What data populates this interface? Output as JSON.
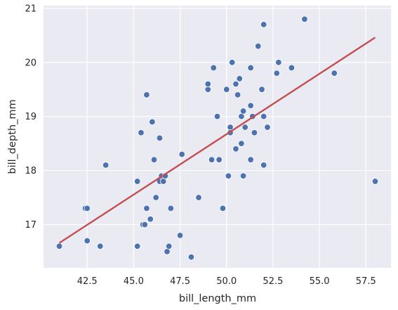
{
  "chart_data": {
    "type": "scatter",
    "title": "",
    "xlabel": "bill_length_mm",
    "ylabel": "bill_depth_mm",
    "xlim": [
      40.15,
      58.85
    ],
    "ylim": [
      16.2,
      21.05
    ],
    "x_ticks": [
      "42.5",
      "45.0",
      "47.5",
      "50.0",
      "52.5",
      "55.0",
      "57.5"
    ],
    "x_tick_values": [
      42.5,
      45.0,
      47.5,
      50.0,
      52.5,
      55.0,
      57.5
    ],
    "y_ticks": [
      "17",
      "18",
      "19",
      "20",
      "21"
    ],
    "y_tick_values": [
      17,
      18,
      19,
      20,
      21
    ],
    "grid": true,
    "colors": {
      "background": "#eaeaf2",
      "grid": "#ffffff",
      "points": "#4c72b0",
      "point_edge": "#ffffff",
      "regression_line": "#c44e52"
    },
    "series": [
      {
        "points": [
          [
            41.0,
            16.6
          ],
          [
            42.4,
            17.3
          ],
          [
            42.5,
            17.3
          ],
          [
            42.5,
            16.7
          ],
          [
            43.2,
            16.6
          ],
          [
            43.5,
            18.1
          ],
          [
            45.2,
            17.8
          ],
          [
            45.2,
            16.6
          ],
          [
            45.4,
            18.7
          ],
          [
            45.5,
            17.0
          ],
          [
            45.6,
            17.0
          ],
          [
            45.7,
            19.4
          ],
          [
            45.7,
            17.3
          ],
          [
            45.9,
            17.1
          ],
          [
            46.0,
            18.9
          ],
          [
            46.1,
            18.2
          ],
          [
            46.2,
            17.5
          ],
          [
            46.4,
            18.6
          ],
          [
            46.4,
            17.8
          ],
          [
            46.5,
            17.9
          ],
          [
            46.6,
            17.8
          ],
          [
            46.7,
            17.9
          ],
          [
            46.8,
            16.5
          ],
          [
            46.9,
            16.6
          ],
          [
            47.0,
            17.3
          ],
          [
            47.5,
            16.8
          ],
          [
            47.6,
            18.3
          ],
          [
            48.1,
            16.4
          ],
          [
            48.5,
            17.5
          ],
          [
            49.0,
            19.5
          ],
          [
            49.0,
            19.6
          ],
          [
            49.2,
            18.2
          ],
          [
            49.3,
            19.9
          ],
          [
            49.5,
            19.0
          ],
          [
            49.6,
            18.2
          ],
          [
            49.8,
            17.3
          ],
          [
            50.0,
            19.5
          ],
          [
            50.1,
            17.9
          ],
          [
            50.2,
            18.8
          ],
          [
            50.2,
            18.7
          ],
          [
            50.3,
            20.0
          ],
          [
            50.5,
            18.4
          ],
          [
            50.5,
            19.6
          ],
          [
            50.6,
            19.4
          ],
          [
            50.7,
            19.7
          ],
          [
            50.8,
            19.0
          ],
          [
            50.8,
            18.5
          ],
          [
            50.9,
            19.1
          ],
          [
            50.9,
            17.9
          ],
          [
            51.0,
            18.8
          ],
          [
            51.3,
            19.9
          ],
          [
            51.3,
            19.2
          ],
          [
            51.3,
            18.2
          ],
          [
            51.4,
            19.0
          ],
          [
            51.5,
            18.7
          ],
          [
            51.7,
            20.3
          ],
          [
            51.9,
            19.5
          ],
          [
            52.0,
            20.7
          ],
          [
            52.0,
            18.1
          ],
          [
            52.0,
            19.0
          ],
          [
            52.2,
            18.8
          ],
          [
            52.7,
            19.8
          ],
          [
            52.8,
            20.0
          ],
          [
            53.5,
            19.9
          ],
          [
            54.2,
            20.8
          ],
          [
            55.8,
            19.8
          ],
          [
            58.0,
            17.8
          ]
        ]
      }
    ],
    "regression_line": {
      "x": [
        41.0,
        58.0
      ],
      "y": [
        16.66,
        20.46
      ]
    }
  }
}
